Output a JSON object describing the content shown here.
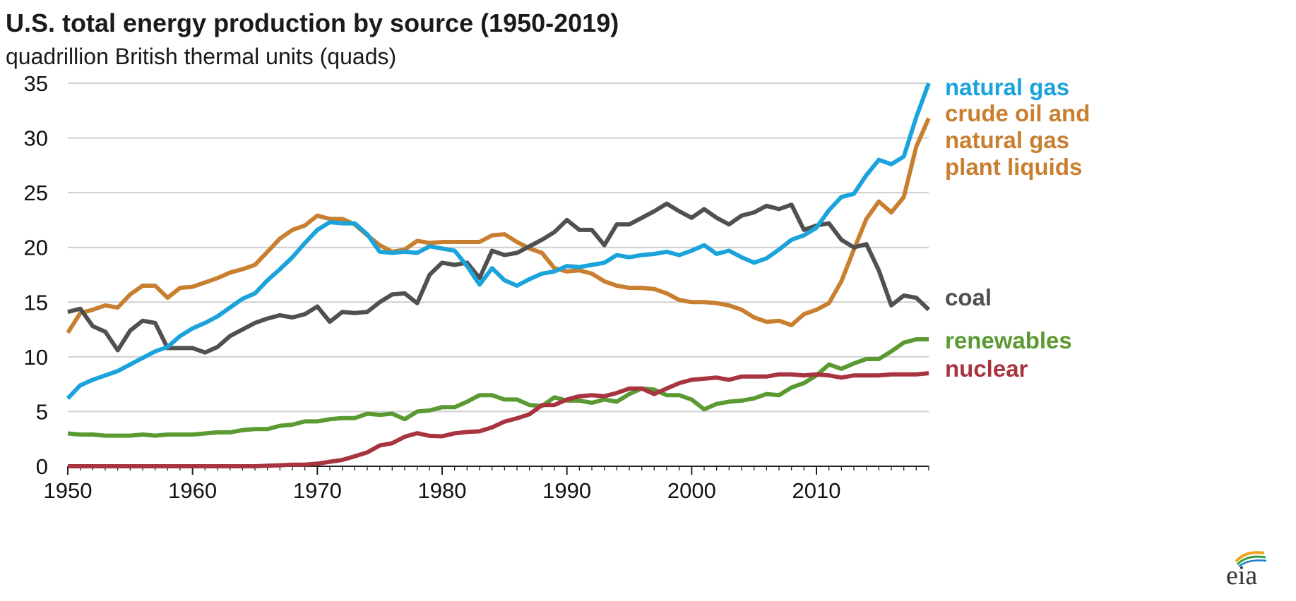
{
  "chart_data": {
    "type": "line",
    "title": "U.S. total energy production by source (1950-2019)",
    "subtitle": "quadrillion British thermal units (quads)",
    "xlabel": "",
    "ylabel": "",
    "xlim": [
      1950,
      2019
    ],
    "ylim": [
      0,
      35
    ],
    "x_ticks": [
      1950,
      1960,
      1970,
      1980,
      1990,
      2000,
      2010
    ],
    "y_ticks": [
      0,
      5,
      10,
      15,
      20,
      25,
      30,
      35
    ],
    "grid": "horizontal",
    "legend": "direct labels at right",
    "x": [
      1950,
      1951,
      1952,
      1953,
      1954,
      1955,
      1956,
      1957,
      1958,
      1959,
      1960,
      1961,
      1962,
      1963,
      1964,
      1965,
      1966,
      1967,
      1968,
      1969,
      1970,
      1971,
      1972,
      1973,
      1974,
      1975,
      1976,
      1977,
      1978,
      1979,
      1980,
      1981,
      1982,
      1983,
      1984,
      1985,
      1986,
      1987,
      1988,
      1989,
      1990,
      1991,
      1992,
      1993,
      1994,
      1995,
      1996,
      1997,
      1998,
      1999,
      2000,
      2001,
      2002,
      2003,
      2004,
      2005,
      2006,
      2007,
      2008,
      2009,
      2010,
      2011,
      2012,
      2013,
      2014,
      2015,
      2016,
      2017,
      2018,
      2019
    ],
    "series": [
      {
        "name": "natural gas",
        "label_lines": [
          "natural gas"
        ],
        "color": "#1ba3db",
        "values": [
          6.2,
          7.4,
          7.9,
          8.3,
          8.7,
          9.3,
          9.9,
          10.5,
          10.9,
          11.9,
          12.6,
          13.1,
          13.7,
          14.5,
          15.3,
          15.8,
          17.0,
          18.0,
          19.1,
          20.4,
          21.6,
          22.3,
          22.2,
          22.2,
          21.2,
          19.6,
          19.5,
          19.6,
          19.5,
          20.1,
          19.9,
          19.7,
          18.3,
          16.6,
          18.1,
          17.0,
          16.5,
          17.1,
          17.6,
          17.8,
          18.3,
          18.2,
          18.4,
          18.6,
          19.3,
          19.1,
          19.3,
          19.4,
          19.6,
          19.3,
          19.7,
          20.2,
          19.4,
          19.7,
          19.1,
          18.6,
          19.0,
          19.8,
          20.7,
          21.1,
          21.8,
          23.4,
          24.6,
          24.9,
          26.6,
          28.0,
          27.6,
          28.3,
          31.9,
          35.0
        ]
      },
      {
        "name": "crude oil and natural gas plant liquids",
        "label_lines": [
          "crude oil and",
          "natural gas",
          "plant liquids"
        ],
        "color": "#c87f30",
        "values": [
          12.2,
          14.0,
          14.3,
          14.7,
          14.5,
          15.7,
          16.5,
          16.5,
          15.4,
          16.3,
          16.4,
          16.8,
          17.2,
          17.7,
          18.0,
          18.4,
          19.6,
          20.8,
          21.6,
          22.0,
          22.9,
          22.6,
          22.6,
          22.1,
          21.1,
          20.2,
          19.6,
          19.8,
          20.6,
          20.4,
          20.5,
          20.5,
          20.5,
          20.5,
          21.1,
          21.2,
          20.5,
          19.9,
          19.5,
          18.1,
          17.8,
          17.9,
          17.6,
          16.9,
          16.5,
          16.3,
          16.3,
          16.2,
          15.8,
          15.2,
          15.0,
          15.0,
          14.9,
          14.7,
          14.3,
          13.6,
          13.2,
          13.3,
          12.9,
          13.9,
          14.3,
          14.9,
          16.9,
          19.8,
          22.6,
          24.2,
          23.2,
          24.6,
          29.2,
          31.8
        ]
      },
      {
        "name": "coal",
        "label_lines": [
          "coal"
        ],
        "color": "#505050",
        "values": [
          14.1,
          14.4,
          12.8,
          12.3,
          10.6,
          12.4,
          13.3,
          13.1,
          10.8,
          10.8,
          10.8,
          10.4,
          10.9,
          11.9,
          12.5,
          13.1,
          13.5,
          13.8,
          13.6,
          13.9,
          14.6,
          13.2,
          14.1,
          14.0,
          14.1,
          15.0,
          15.7,
          15.8,
          14.9,
          17.5,
          18.6,
          18.4,
          18.6,
          17.2,
          19.7,
          19.3,
          19.5,
          20.1,
          20.7,
          21.4,
          22.5,
          21.6,
          21.6,
          20.2,
          22.1,
          22.1,
          22.7,
          23.3,
          24.0,
          23.3,
          22.7,
          23.5,
          22.7,
          22.1,
          22.9,
          23.2,
          23.8,
          23.5,
          23.9,
          21.6,
          22.0,
          22.2,
          20.7,
          20.0,
          20.3,
          17.9,
          14.7,
          15.6,
          15.4,
          14.3
        ]
      },
      {
        "name": "renewables",
        "label_lines": [
          "renewables"
        ],
        "color": "#5b9a32",
        "values": [
          3.0,
          2.9,
          2.9,
          2.8,
          2.8,
          2.8,
          2.9,
          2.8,
          2.9,
          2.9,
          2.9,
          3.0,
          3.1,
          3.1,
          3.3,
          3.4,
          3.4,
          3.7,
          3.8,
          4.1,
          4.1,
          4.3,
          4.4,
          4.4,
          4.8,
          4.7,
          4.8,
          4.3,
          5.0,
          5.1,
          5.4,
          5.4,
          5.9,
          6.5,
          6.5,
          6.1,
          6.1,
          5.6,
          5.5,
          6.3,
          6.0,
          6.0,
          5.8,
          6.1,
          5.9,
          6.6,
          7.1,
          7.0,
          6.5,
          6.5,
          6.1,
          5.2,
          5.7,
          5.9,
          6.0,
          6.2,
          6.6,
          6.5,
          7.2,
          7.6,
          8.3,
          9.3,
          8.9,
          9.4,
          9.8,
          9.8,
          10.5,
          11.3,
          11.6,
          11.6
        ]
      },
      {
        "name": "nuclear",
        "label_lines": [
          "nuclear"
        ],
        "color": "#a8343f",
        "values": [
          0,
          0,
          0,
          0,
          0,
          0,
          0,
          0,
          0,
          0,
          0,
          0,
          0,
          0,
          0,
          0,
          0.05,
          0.09,
          0.14,
          0.15,
          0.24,
          0.41,
          0.58,
          0.91,
          1.27,
          1.9,
          2.11,
          2.7,
          3.02,
          2.78,
          2.74,
          3.01,
          3.13,
          3.2,
          3.55,
          4.08,
          4.38,
          4.75,
          5.59,
          5.6,
          6.1,
          6.4,
          6.5,
          6.4,
          6.7,
          7.1,
          7.1,
          6.6,
          7.1,
          7.6,
          7.9,
          8.0,
          8.1,
          7.9,
          8.2,
          8.2,
          8.2,
          8.4,
          8.4,
          8.3,
          8.4,
          8.3,
          8.1,
          8.3,
          8.3,
          8.3,
          8.4,
          8.4,
          8.4,
          8.5
        ]
      }
    ]
  },
  "logo": {
    "text": "eia"
  }
}
